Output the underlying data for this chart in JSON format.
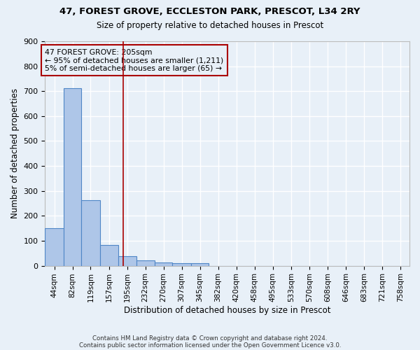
{
  "title_line1": "47, FOREST GROVE, ECCLESTON PARK, PRESCOT, L34 2RY",
  "title_line2": "Size of property relative to detached houses in Prescot",
  "xlabel": "Distribution of detached houses by size in Prescot",
  "ylabel": "Number of detached properties",
  "bin_edges": [
    44,
    82,
    119,
    157,
    195,
    232,
    270,
    307,
    345,
    382,
    420,
    458,
    495,
    533,
    570,
    608,
    646,
    683,
    721,
    758,
    796
  ],
  "bar_heights": [
    150,
    713,
    263,
    83,
    38,
    22,
    12,
    10,
    10,
    0,
    0,
    0,
    0,
    0,
    0,
    0,
    0,
    0,
    0,
    0
  ],
  "bar_color": "#aec6e8",
  "bar_edgecolor": "#4f86c6",
  "vline_x": 205,
  "vline_color": "#aa0000",
  "ylim": [
    0,
    900
  ],
  "yticks": [
    0,
    100,
    200,
    300,
    400,
    500,
    600,
    700,
    800,
    900
  ],
  "annotation_text": "47 FOREST GROVE: 205sqm\n← 95% of detached houses are smaller (1,211)\n5% of semi-detached houses are larger (65) →",
  "annotation_box_edgecolor": "#aa0000",
  "footer_text1": "Contains HM Land Registry data © Crown copyright and database right 2024.",
  "footer_text2": "Contains public sector information licensed under the Open Government Licence v3.0.",
  "background_color": "#e8f0f8",
  "grid_color": "#ffffff"
}
